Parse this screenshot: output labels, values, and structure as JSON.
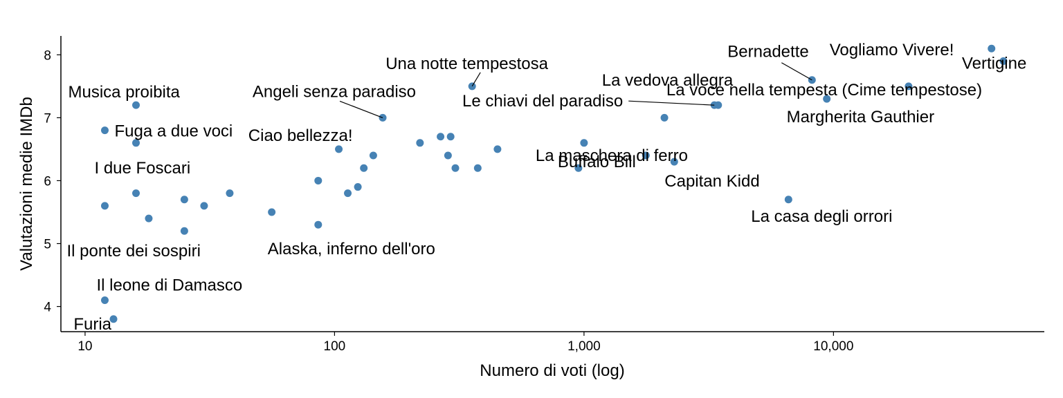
{
  "chart_data": {
    "type": "scatter",
    "xlabel": "Numero di voti (log)",
    "ylabel": "Valutazioni medie IMDb",
    "x_scale": "log10",
    "xlim": [
      8,
      70000
    ],
    "ylim": [
      3.6,
      8.3
    ],
    "x_ticks": [
      {
        "value": 10,
        "label": "10"
      },
      {
        "value": 100,
        "label": "100"
      },
      {
        "value": 1000,
        "label": "1,000"
      },
      {
        "value": 10000,
        "label": "10,000"
      }
    ],
    "y_ticks": [
      {
        "value": 4,
        "label": "4"
      },
      {
        "value": 5,
        "label": "5"
      },
      {
        "value": 6,
        "label": "6"
      },
      {
        "value": 7,
        "label": "7"
      },
      {
        "value": 8,
        "label": "8"
      }
    ],
    "point_color": "#4682b4",
    "grid": false,
    "points": [
      {
        "x": 13,
        "y": 3.8,
        "label": "Furia"
      },
      {
        "x": 12,
        "y": 4.1,
        "label": "Il leone di Damasco"
      },
      {
        "x": 12,
        "y": 5.6,
        "label": "Il ponte dei sospiri"
      },
      {
        "x": 12,
        "y": 6.8,
        "label": "Fuga a due voci"
      },
      {
        "x": 16,
        "y": 7.2,
        "label": "Musica proibita"
      },
      {
        "x": 16,
        "y": 6.6,
        "label": "I due Foscari"
      },
      {
        "x": 16,
        "y": 5.8
      },
      {
        "x": 18,
        "y": 5.4
      },
      {
        "x": 25,
        "y": 5.7
      },
      {
        "x": 25,
        "y": 5.2
      },
      {
        "x": 30,
        "y": 5.6
      },
      {
        "x": 38,
        "y": 5.8
      },
      {
        "x": 56,
        "y": 5.5
      },
      {
        "x": 86,
        "y": 6.0
      },
      {
        "x": 86,
        "y": 5.3,
        "label": "Alaska, inferno dell'oro"
      },
      {
        "x": 104,
        "y": 6.5,
        "label": "Ciao bellezza!"
      },
      {
        "x": 113,
        "y": 5.8
      },
      {
        "x": 124,
        "y": 5.9
      },
      {
        "x": 131,
        "y": 6.2
      },
      {
        "x": 143,
        "y": 6.4
      },
      {
        "x": 156,
        "y": 7.0,
        "label": "Angeli senza paradiso"
      },
      {
        "x": 220,
        "y": 6.6
      },
      {
        "x": 266,
        "y": 6.7
      },
      {
        "x": 285,
        "y": 6.4
      },
      {
        "x": 292,
        "y": 6.7
      },
      {
        "x": 305,
        "y": 6.2
      },
      {
        "x": 356,
        "y": 7.5,
        "label": "Una notte tempestosa"
      },
      {
        "x": 375,
        "y": 6.2
      },
      {
        "x": 450,
        "y": 6.5
      },
      {
        "x": 950,
        "y": 6.2,
        "label": "Buffalo Bill"
      },
      {
        "x": 1000,
        "y": 6.6,
        "label": "La maschera di ferro"
      },
      {
        "x": 1770,
        "y": 6.4
      },
      {
        "x": 2100,
        "y": 7.0
      },
      {
        "x": 2300,
        "y": 6.3,
        "label": "Capitan Kidd"
      },
      {
        "x": 3330,
        "y": 7.2,
        "label": "Le chiavi del paradiso"
      },
      {
        "x": 3450,
        "y": 7.2,
        "label": "La vedova allegra"
      },
      {
        "x": 6600,
        "y": 5.7,
        "label": "La casa degli orrori"
      },
      {
        "x": 8200,
        "y": 7.6,
        "label": "Bernadette"
      },
      {
        "x": 9400,
        "y": 7.3,
        "label": "Margherita Gauthier"
      },
      {
        "x": 20000,
        "y": 7.5,
        "label": "La voce nella tempesta (Cime tempestose)"
      },
      {
        "x": 43000,
        "y": 8.1,
        "label": "Vogliamo Vivere!"
      },
      {
        "x": 48000,
        "y": 7.9,
        "label": "Vertigine"
      }
    ]
  }
}
